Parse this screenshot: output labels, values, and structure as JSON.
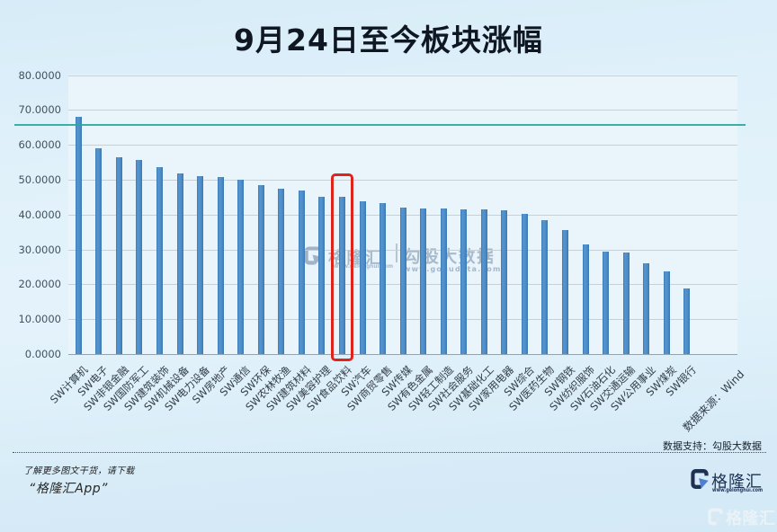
{
  "title": "9月24日至今板块涨幅",
  "chart_data": {
    "type": "bar",
    "title": "9月24日至今板块涨幅",
    "categories": [
      "SW计算机",
      "SW电子",
      "SW非银金融",
      "SW国防军工",
      "SW建筑装饰",
      "SW机械设备",
      "SW电力设备",
      "SW房地产",
      "SW通信",
      "SW环保",
      "SW农林牧渔",
      "SW建筑材料",
      "SW美容护理",
      "SW食品饮料",
      "SW汽车",
      "SW商贸零售",
      "SW传媒",
      "SW有色金属",
      "SW轻工制造",
      "SW社会服务",
      "SW基础化工",
      "SW家用电器",
      "SW综合",
      "SW医药生物",
      "SW钢铁",
      "SW纺织服饰",
      "SW石油石化",
      "SW交通运输",
      "SW公用事业",
      "SW煤炭",
      "SW银行"
    ],
    "values": [
      67.9,
      59.0,
      56.4,
      55.7,
      53.5,
      51.9,
      51.0,
      50.8,
      50.0,
      48.4,
      47.4,
      46.8,
      45.2,
      45.1,
      43.7,
      43.4,
      42.1,
      41.8,
      41.7,
      41.5,
      41.4,
      41.1,
      40.3,
      38.3,
      35.5,
      31.5,
      29.4,
      29.2,
      25.9,
      23.7,
      18.8
    ],
    "ylim": [
      0,
      80
    ],
    "ytick_step": 10,
    "ytick_labels": [
      "0.0000",
      "10.0000",
      "20.0000",
      "30.0000",
      "40.0000",
      "50.0000",
      "60.0000",
      "70.0000",
      "80.0000"
    ],
    "grid": true,
    "legend": "none",
    "bar_color": "#4a8ac5",
    "highlight": {
      "category": "SW食品饮料",
      "box_color": "#df241c"
    },
    "reference_line": {
      "value": 65.6,
      "color": "#2aa89e"
    },
    "extra_x_label": "数据来源：Wind"
  },
  "watermark": {
    "brand": "格隆汇",
    "brand_url": "www.gelonghui.com",
    "partner": "勾股大数据",
    "partner_url": "www.gogudata.com"
  },
  "footer": {
    "data_support": "数据支持：勾股大数据",
    "promo_line1": "了解更多图文干货，请下载",
    "promo_line2": "“格隆汇App”",
    "brand_logo_text": "格隆汇",
    "brand_logo_url": "www.gelonghui.com",
    "corner_watermark_text": "格隆汇"
  }
}
